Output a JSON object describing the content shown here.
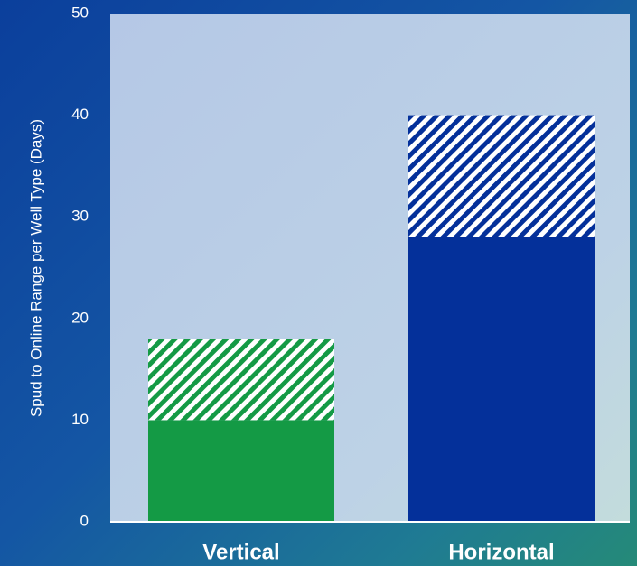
{
  "chart_data": {
    "type": "bar",
    "stacked": true,
    "title": "",
    "xlabel": "",
    "ylabel": "Spud to Online Range per Well Type (Days)",
    "ylim": [
      0,
      50
    ],
    "yticks": [
      0,
      10,
      20,
      30,
      40,
      50
    ],
    "grid": false,
    "categories": [
      "Vertical",
      "Horizontal"
    ],
    "series": [
      {
        "values": [
          10,
          28
        ],
        "style": "solid"
      },
      {
        "values": [
          8,
          12
        ],
        "style": "hatched"
      }
    ],
    "colors": {
      "Vertical": "#149a45",
      "Horizontal": "#04309a",
      "plot_background": "#b9cde6"
    }
  }
}
